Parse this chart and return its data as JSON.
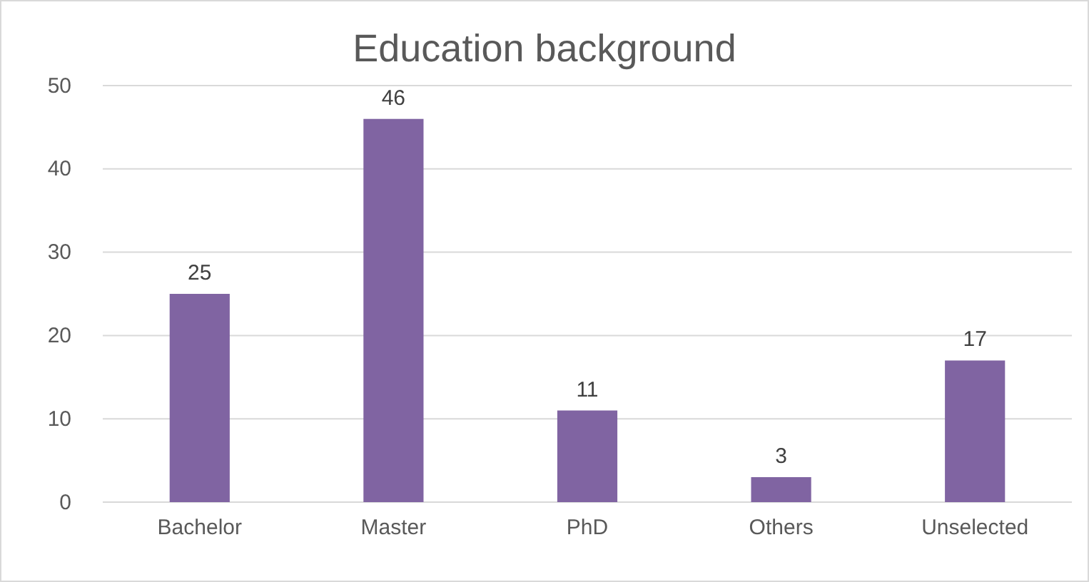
{
  "chart_data": {
    "type": "bar",
    "title": "Education background",
    "categories": [
      "Bachelor",
      "Master",
      "PhD",
      "Others",
      "Unselected"
    ],
    "values": [
      25,
      46,
      11,
      3,
      17
    ],
    "color": "#8064a2",
    "ylim": [
      0,
      50
    ],
    "yticks": [
      0,
      10,
      20,
      30,
      40,
      50
    ],
    "grid": "y",
    "data_labels": true
  }
}
